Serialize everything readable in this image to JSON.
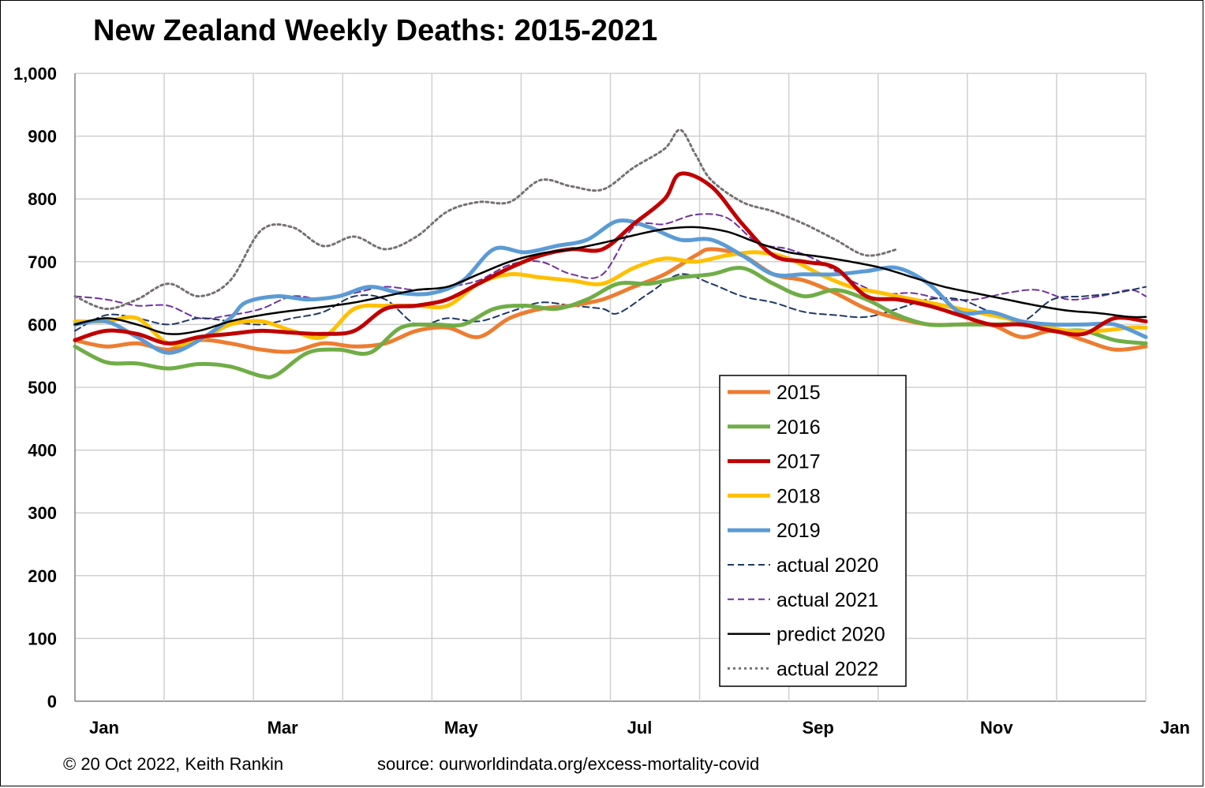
{
  "chart_data": {
    "type": "line",
    "title": "New Zealand Weekly Deaths: 2015-2021",
    "xlabel": "",
    "ylabel": "",
    "ylim": [
      0,
      1000
    ],
    "yticks": [
      "0",
      "100",
      "200",
      "300",
      "400",
      "500",
      "600",
      "700",
      "800",
      "900",
      "1,000"
    ],
    "xtick_labels": [
      "Jan",
      "Mar",
      "May",
      "Jul",
      "Sep",
      "Nov",
      "Jan"
    ],
    "grid": true,
    "legend_position": "center-right inside plot",
    "x_unit": "week of year (1-53)",
    "series": [
      {
        "name": "2015",
        "color": "#ed7d31",
        "style": "solid-thick",
        "points": [
          [
            1,
            575
          ],
          [
            3,
            565
          ],
          [
            5,
            570
          ],
          [
            7,
            560
          ],
          [
            9,
            575
          ],
          [
            11,
            570
          ],
          [
            13,
            560
          ],
          [
            15,
            557
          ],
          [
            17,
            570
          ],
          [
            19,
            565
          ],
          [
            21,
            570
          ],
          [
            23,
            590
          ],
          [
            25,
            595
          ],
          [
            27,
            580
          ],
          [
            29,
            610
          ],
          [
            31,
            625
          ],
          [
            33,
            630
          ],
          [
            35,
            640
          ],
          [
            37,
            660
          ],
          [
            39,
            680
          ],
          [
            41,
            710
          ],
          [
            42,
            720
          ],
          [
            44,
            710
          ],
          [
            46,
            680
          ],
          [
            48,
            670
          ],
          [
            50,
            650
          ],
          [
            52,
            625
          ],
          [
            54,
            610
          ],
          [
            56,
            600
          ],
          [
            58,
            600
          ],
          [
            60,
            600
          ],
          [
            62,
            580
          ],
          [
            64,
            590
          ],
          [
            66,
            575
          ],
          [
            68,
            560
          ],
          [
            70,
            565
          ]
        ]
      },
      {
        "name": "2016",
        "color": "#70ad47",
        "style": "solid-thick",
        "points": [
          [
            1,
            565
          ],
          [
            3,
            540
          ],
          [
            5,
            538
          ],
          [
            7,
            530
          ],
          [
            9,
            537
          ],
          [
            11,
            533
          ],
          [
            13,
            518
          ],
          [
            14,
            520
          ],
          [
            16,
            555
          ],
          [
            18,
            560
          ],
          [
            20,
            555
          ],
          [
            22,
            595
          ],
          [
            24,
            600
          ],
          [
            26,
            600
          ],
          [
            28,
            625
          ],
          [
            30,
            630
          ],
          [
            32,
            625
          ],
          [
            34,
            640
          ],
          [
            36,
            665
          ],
          [
            38,
            665
          ],
          [
            40,
            675
          ],
          [
            42,
            680
          ],
          [
            44,
            690
          ],
          [
            46,
            665
          ],
          [
            48,
            645
          ],
          [
            50,
            655
          ],
          [
            52,
            640
          ],
          [
            54,
            615
          ],
          [
            56,
            600
          ],
          [
            58,
            600
          ],
          [
            60,
            600
          ],
          [
            62,
            600
          ],
          [
            64,
            590
          ],
          [
            66,
            590
          ],
          [
            68,
            575
          ],
          [
            70,
            570
          ]
        ]
      },
      {
        "name": "2017",
        "color": "#c00000",
        "style": "solid-thick",
        "points": [
          [
            1,
            575
          ],
          [
            3,
            590
          ],
          [
            5,
            585
          ],
          [
            7,
            570
          ],
          [
            9,
            580
          ],
          [
            11,
            585
          ],
          [
            13,
            590
          ],
          [
            15,
            587
          ],
          [
            17,
            585
          ],
          [
            19,
            590
          ],
          [
            21,
            625
          ],
          [
            23,
            630
          ],
          [
            25,
            640
          ],
          [
            27,
            665
          ],
          [
            29,
            690
          ],
          [
            31,
            710
          ],
          [
            33,
            720
          ],
          [
            35,
            720
          ],
          [
            37,
            760
          ],
          [
            39,
            800
          ],
          [
            40,
            840
          ],
          [
            42,
            820
          ],
          [
            44,
            760
          ],
          [
            46,
            710
          ],
          [
            48,
            700
          ],
          [
            50,
            690
          ],
          [
            52,
            645
          ],
          [
            54,
            640
          ],
          [
            56,
            630
          ],
          [
            58,
            615
          ],
          [
            60,
            600
          ],
          [
            62,
            600
          ],
          [
            64,
            590
          ],
          [
            66,
            585
          ],
          [
            68,
            610
          ],
          [
            70,
            605
          ]
        ]
      },
      {
        "name": "2018",
        "color": "#ffc000",
        "style": "solid-thick",
        "points": [
          [
            1,
            605
          ],
          [
            3,
            605
          ],
          [
            5,
            610
          ],
          [
            7,
            570
          ],
          [
            9,
            575
          ],
          [
            11,
            600
          ],
          [
            13,
            605
          ],
          [
            15,
            590
          ],
          [
            17,
            580
          ],
          [
            19,
            625
          ],
          [
            21,
            630
          ],
          [
            23,
            630
          ],
          [
            25,
            630
          ],
          [
            27,
            665
          ],
          [
            29,
            680
          ],
          [
            31,
            675
          ],
          [
            33,
            670
          ],
          [
            35,
            665
          ],
          [
            37,
            690
          ],
          [
            39,
            705
          ],
          [
            41,
            700
          ],
          [
            43,
            710
          ],
          [
            45,
            715
          ],
          [
            47,
            705
          ],
          [
            49,
            680
          ],
          [
            51,
            660
          ],
          [
            53,
            650
          ],
          [
            55,
            640
          ],
          [
            57,
            630
          ],
          [
            59,
            620
          ],
          [
            61,
            610
          ],
          [
            63,
            600
          ],
          [
            65,
            590
          ],
          [
            67,
            590
          ],
          [
            69,
            595
          ],
          [
            70,
            595
          ]
        ]
      },
      {
        "name": "2019",
        "color": "#5b9bd5",
        "style": "solid-thick",
        "points": [
          [
            1,
            600
          ],
          [
            3,
            605
          ],
          [
            5,
            580
          ],
          [
            7,
            555
          ],
          [
            9,
            575
          ],
          [
            11,
            610
          ],
          [
            12,
            635
          ],
          [
            14,
            645
          ],
          [
            16,
            640
          ],
          [
            18,
            645
          ],
          [
            20,
            660
          ],
          [
            22,
            650
          ],
          [
            24,
            650
          ],
          [
            26,
            670
          ],
          [
            28,
            720
          ],
          [
            30,
            715
          ],
          [
            32,
            725
          ],
          [
            34,
            735
          ],
          [
            36,
            765
          ],
          [
            38,
            755
          ],
          [
            40,
            735
          ],
          [
            42,
            735
          ],
          [
            44,
            710
          ],
          [
            46,
            680
          ],
          [
            48,
            680
          ],
          [
            50,
            680
          ],
          [
            52,
            685
          ],
          [
            54,
            690
          ],
          [
            56,
            665
          ],
          [
            58,
            620
          ],
          [
            60,
            620
          ],
          [
            62,
            605
          ],
          [
            64,
            600
          ],
          [
            66,
            600
          ],
          [
            68,
            600
          ],
          [
            70,
            580
          ]
        ]
      },
      {
        "name": "actual 2020",
        "color": "#1f3864",
        "style": "dashed",
        "points": [
          [
            1,
            590
          ],
          [
            3,
            615
          ],
          [
            5,
            610
          ],
          [
            7,
            600
          ],
          [
            9,
            610
          ],
          [
            11,
            605
          ],
          [
            13,
            600
          ],
          [
            15,
            610
          ],
          [
            17,
            620
          ],
          [
            19,
            645
          ],
          [
            21,
            640
          ],
          [
            23,
            600
          ],
          [
            25,
            610
          ],
          [
            27,
            605
          ],
          [
            29,
            620
          ],
          [
            31,
            635
          ],
          [
            33,
            630
          ],
          [
            35,
            625
          ],
          [
            36,
            618
          ],
          [
            38,
            650
          ],
          [
            40,
            680
          ],
          [
            42,
            665
          ],
          [
            44,
            645
          ],
          [
            46,
            635
          ],
          [
            48,
            620
          ],
          [
            50,
            615
          ],
          [
            52,
            612
          ],
          [
            54,
            625
          ],
          [
            56,
            640
          ],
          [
            58,
            640
          ],
          [
            60,
            620
          ],
          [
            62,
            605
          ],
          [
            64,
            640
          ],
          [
            66,
            645
          ],
          [
            68,
            650
          ],
          [
            70,
            660
          ]
        ]
      },
      {
        "name": "actual 2021",
        "color": "#7030a0",
        "style": "dashed",
        "points": [
          [
            1,
            645
          ],
          [
            3,
            640
          ],
          [
            5,
            630
          ],
          [
            7,
            630
          ],
          [
            9,
            610
          ],
          [
            11,
            615
          ],
          [
            13,
            625
          ],
          [
            15,
            645
          ],
          [
            17,
            640
          ],
          [
            19,
            650
          ],
          [
            21,
            660
          ],
          [
            23,
            655
          ],
          [
            25,
            660
          ],
          [
            27,
            670
          ],
          [
            29,
            695
          ],
          [
            31,
            700
          ],
          [
            33,
            680
          ],
          [
            35,
            680
          ],
          [
            37,
            755
          ],
          [
            39,
            760
          ],
          [
            41,
            775
          ],
          [
            43,
            770
          ],
          [
            45,
            730
          ],
          [
            47,
            720
          ],
          [
            49,
            700
          ],
          [
            51,
            670
          ],
          [
            53,
            650
          ],
          [
            55,
            650
          ],
          [
            57,
            640
          ],
          [
            59,
            640
          ],
          [
            61,
            650
          ],
          [
            63,
            655
          ],
          [
            65,
            640
          ],
          [
            67,
            645
          ],
          [
            69,
            655
          ],
          [
            70,
            645
          ]
        ]
      },
      {
        "name": "predict 2020",
        "color": "#000000",
        "style": "solid-thin",
        "points": [
          [
            1,
            600
          ],
          [
            3,
            610
          ],
          [
            5,
            600
          ],
          [
            7,
            585
          ],
          [
            9,
            590
          ],
          [
            11,
            605
          ],
          [
            13,
            615
          ],
          [
            15,
            622
          ],
          [
            17,
            628
          ],
          [
            19,
            635
          ],
          [
            21,
            645
          ],
          [
            23,
            655
          ],
          [
            25,
            660
          ],
          [
            27,
            680
          ],
          [
            29,
            700
          ],
          [
            31,
            713
          ],
          [
            33,
            720
          ],
          [
            35,
            730
          ],
          [
            37,
            742
          ],
          [
            39,
            752
          ],
          [
            41,
            755
          ],
          [
            43,
            748
          ],
          [
            45,
            730
          ],
          [
            47,
            715
          ],
          [
            49,
            708
          ],
          [
            51,
            700
          ],
          [
            53,
            690
          ],
          [
            55,
            675
          ],
          [
            57,
            660
          ],
          [
            59,
            650
          ],
          [
            61,
            640
          ],
          [
            63,
            630
          ],
          [
            65,
            622
          ],
          [
            67,
            618
          ],
          [
            69,
            612
          ],
          [
            70,
            612
          ]
        ]
      },
      {
        "name": "actual 2022",
        "color": "#767171",
        "style": "dotted",
        "points": [
          [
            1,
            645
          ],
          [
            3,
            625
          ],
          [
            5,
            640
          ],
          [
            7,
            665
          ],
          [
            9,
            645
          ],
          [
            11,
            670
          ],
          [
            13,
            750
          ],
          [
            15,
            755
          ],
          [
            17,
            725
          ],
          [
            19,
            740
          ],
          [
            21,
            720
          ],
          [
            23,
            740
          ],
          [
            25,
            780
          ],
          [
            27,
            795
          ],
          [
            29,
            795
          ],
          [
            31,
            830
          ],
          [
            33,
            820
          ],
          [
            35,
            815
          ],
          [
            37,
            850
          ],
          [
            39,
            880
          ],
          [
            40,
            910
          ],
          [
            41,
            870
          ],
          [
            42,
            830
          ],
          [
            44,
            795
          ],
          [
            46,
            780
          ],
          [
            48,
            760
          ],
          [
            50,
            735
          ],
          [
            52,
            710
          ],
          [
            54,
            720
          ]
        ]
      }
    ]
  },
  "credits": {
    "left": "© 20 Oct 2022, Keith Rankin",
    "right": "source: ourworldindata.org/excess-mortality-covid"
  }
}
